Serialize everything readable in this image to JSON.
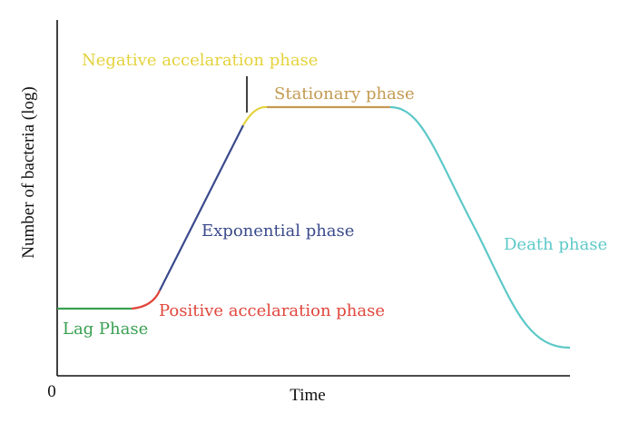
{
  "chart_data": {
    "type": "line",
    "xlabel": "Time",
    "ylabel": "Number of bacteria (log)",
    "origin_label": "0",
    "phases": [
      {
        "key": "lag",
        "name": "Lag Phase",
        "color": "#3aa052"
      },
      {
        "key": "positive",
        "name": "Positive accelaration phase",
        "color": "#e0463c"
      },
      {
        "key": "exponential",
        "name": "Exponential phase",
        "color": "#3a4a8c"
      },
      {
        "key": "negative",
        "name": "Negative accelaration phase",
        "color": "#e4d23c"
      },
      {
        "key": "stationary",
        "name": "Stationary phase",
        "color": "#c49a52"
      },
      {
        "key": "death",
        "name": "Death phase",
        "color": "#5ec8c8"
      }
    ]
  }
}
